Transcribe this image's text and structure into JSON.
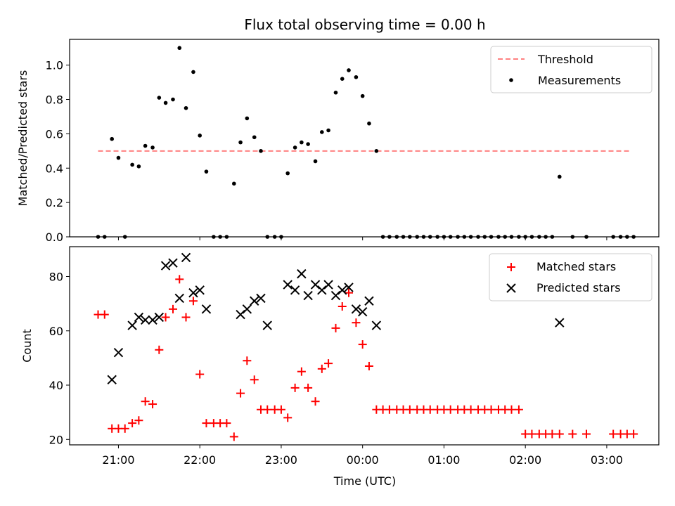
{
  "chart_data": [
    {
      "type": "scatter",
      "title": "Flux total observing time = 0.00 h",
      "xlabel": "",
      "ylabel": "Matched/Predicted stars",
      "ylim": [
        0,
        1.15
      ],
      "yticks": [
        0.0,
        0.2,
        0.4,
        0.6,
        0.8,
        1.0
      ],
      "ytick_labels": [
        "0.0",
        "0.2",
        "0.4",
        "0.6",
        "0.8",
        "1.0"
      ],
      "xlim": [
        -0.6,
        6.64
      ],
      "legend": "top-right",
      "threshold": {
        "name": "Threshold",
        "y": 0.5,
        "x": [
          -0.25,
          6.3
        ],
        "color": "#ff8080"
      },
      "series": [
        {
          "name": "Measurements",
          "color": "#000000",
          "x": [
            -0.25,
            -0.17,
            -0.08,
            0.0,
            0.08,
            0.17,
            0.25,
            0.33,
            0.42,
            0.5,
            0.58,
            0.67,
            0.75,
            0.83,
            0.92,
            1.0,
            1.08,
            1.17,
            1.25,
            1.33,
            1.42,
            1.5,
            1.58,
            1.67,
            1.75,
            1.83,
            1.92,
            2.0,
            2.08,
            2.17,
            2.25,
            2.33,
            2.42,
            2.5,
            2.58,
            2.67,
            2.75,
            2.83,
            2.92,
            3.0,
            3.08,
            3.17,
            3.25,
            3.33,
            3.42,
            3.5,
            3.58,
            3.67,
            3.75,
            3.83,
            3.92,
            4.0,
            4.08,
            4.17,
            4.25,
            4.33,
            4.42,
            4.5,
            4.58,
            4.67,
            4.75,
            4.83,
            4.92,
            5.0,
            5.08,
            5.17,
            5.25,
            5.33,
            5.42,
            5.58,
            5.75,
            6.08,
            6.17,
            6.25,
            6.33
          ],
          "y": [
            0.0,
            0.0,
            0.57,
            0.46,
            0.0,
            0.42,
            0.41,
            0.53,
            0.52,
            0.81,
            0.78,
            0.8,
            1.1,
            0.75,
            0.96,
            0.59,
            0.38,
            0.0,
            0.0,
            0.0,
            0.31,
            0.55,
            0.69,
            0.58,
            0.5,
            0.0,
            0.0,
            0.0,
            0.37,
            0.52,
            0.55,
            0.54,
            0.44,
            0.61,
            0.62,
            0.84,
            0.92,
            0.97,
            0.93,
            0.82,
            0.66,
            0.5,
            0.0,
            0.0,
            0.0,
            0.0,
            0.0,
            0.0,
            0.0,
            0.0,
            0.0,
            0.0,
            0.0,
            0.0,
            0.0,
            0.0,
            0.0,
            0.0,
            0.0,
            0.0,
            0.0,
            0.0,
            0.0,
            0.0,
            0.0,
            0.0,
            0.0,
            0.0,
            0.35,
            0.0,
            0.0,
            0.0,
            0.0,
            0.0,
            0.0
          ]
        }
      ]
    },
    {
      "type": "scatter",
      "title": "",
      "xlabel": "Time (UTC)",
      "ylabel": "Count",
      "ylim": [
        18,
        91
      ],
      "yticks": [
        20,
        40,
        60,
        80
      ],
      "ytick_labels": [
        "20",
        "40",
        "60",
        "80"
      ],
      "xlim": [
        -0.6,
        6.64
      ],
      "xticks": [
        0,
        1,
        2,
        3,
        4,
        5,
        6
      ],
      "xtick_labels": [
        "21:00",
        "22:00",
        "23:00",
        "00:00",
        "01:00",
        "02:00",
        "03:00"
      ],
      "legend": "top-right",
      "series": [
        {
          "name": "Matched stars",
          "color": "#ff0000",
          "marker": "plus",
          "x": [
            -0.25,
            -0.17,
            -0.08,
            0.0,
            0.08,
            0.17,
            0.25,
            0.33,
            0.42,
            0.5,
            0.58,
            0.67,
            0.75,
            0.83,
            0.92,
            1.0,
            1.08,
            1.17,
            1.25,
            1.33,
            1.42,
            1.5,
            1.58,
            1.67,
            1.75,
            1.83,
            1.92,
            2.0,
            2.08,
            2.17,
            2.25,
            2.33,
            2.42,
            2.5,
            2.58,
            2.67,
            2.75,
            2.83,
            2.92,
            3.0,
            3.08,
            3.17,
            3.25,
            3.33,
            3.42,
            3.5,
            3.58,
            3.67,
            3.75,
            3.83,
            3.92,
            4.0,
            4.08,
            4.17,
            4.25,
            4.33,
            4.42,
            4.5,
            4.58,
            4.67,
            4.75,
            4.83,
            4.92,
            5.0,
            5.08,
            5.17,
            5.25,
            5.33,
            5.42,
            5.58,
            5.75,
            6.08,
            6.17,
            6.25,
            6.33
          ],
          "y": [
            66,
            66,
            24,
            24,
            24,
            26,
            27,
            34,
            33,
            53,
            65,
            68,
            79,
            65,
            71,
            44,
            26,
            26,
            26,
            26,
            21,
            37,
            49,
            42,
            31,
            31,
            31,
            31,
            28,
            39,
            45,
            39,
            34,
            46,
            48,
            61,
            69,
            74,
            63,
            55,
            47,
            31,
            31,
            31,
            31,
            31,
            31,
            31,
            31,
            31,
            31,
            31,
            31,
            31,
            31,
            31,
            31,
            31,
            31,
            31,
            31,
            31,
            31,
            22,
            22,
            22,
            22,
            22,
            22,
            22,
            22,
            22,
            22,
            22,
            22
          ]
        },
        {
          "name": "Predicted stars",
          "color": "#000000",
          "marker": "x",
          "x": [
            -0.08,
            0.0,
            0.17,
            0.25,
            0.33,
            0.42,
            0.5,
            0.58,
            0.67,
            0.75,
            0.83,
            0.92,
            1.0,
            1.08,
            1.5,
            1.58,
            1.67,
            1.75,
            1.83,
            2.08,
            2.17,
            2.25,
            2.33,
            2.42,
            2.5,
            2.58,
            2.67,
            2.75,
            2.83,
            2.92,
            3.0,
            3.08,
            3.17,
            5.42
          ],
          "y": [
            42,
            52,
            62,
            65,
            64,
            64,
            65,
            84,
            85,
            72,
            87,
            74,
            75,
            68,
            66,
            68,
            71,
            72,
            62,
            77,
            75,
            81,
            73,
            77,
            75,
            77,
            73,
            75,
            76,
            68,
            67,
            71,
            62,
            63
          ]
        }
      ]
    }
  ]
}
